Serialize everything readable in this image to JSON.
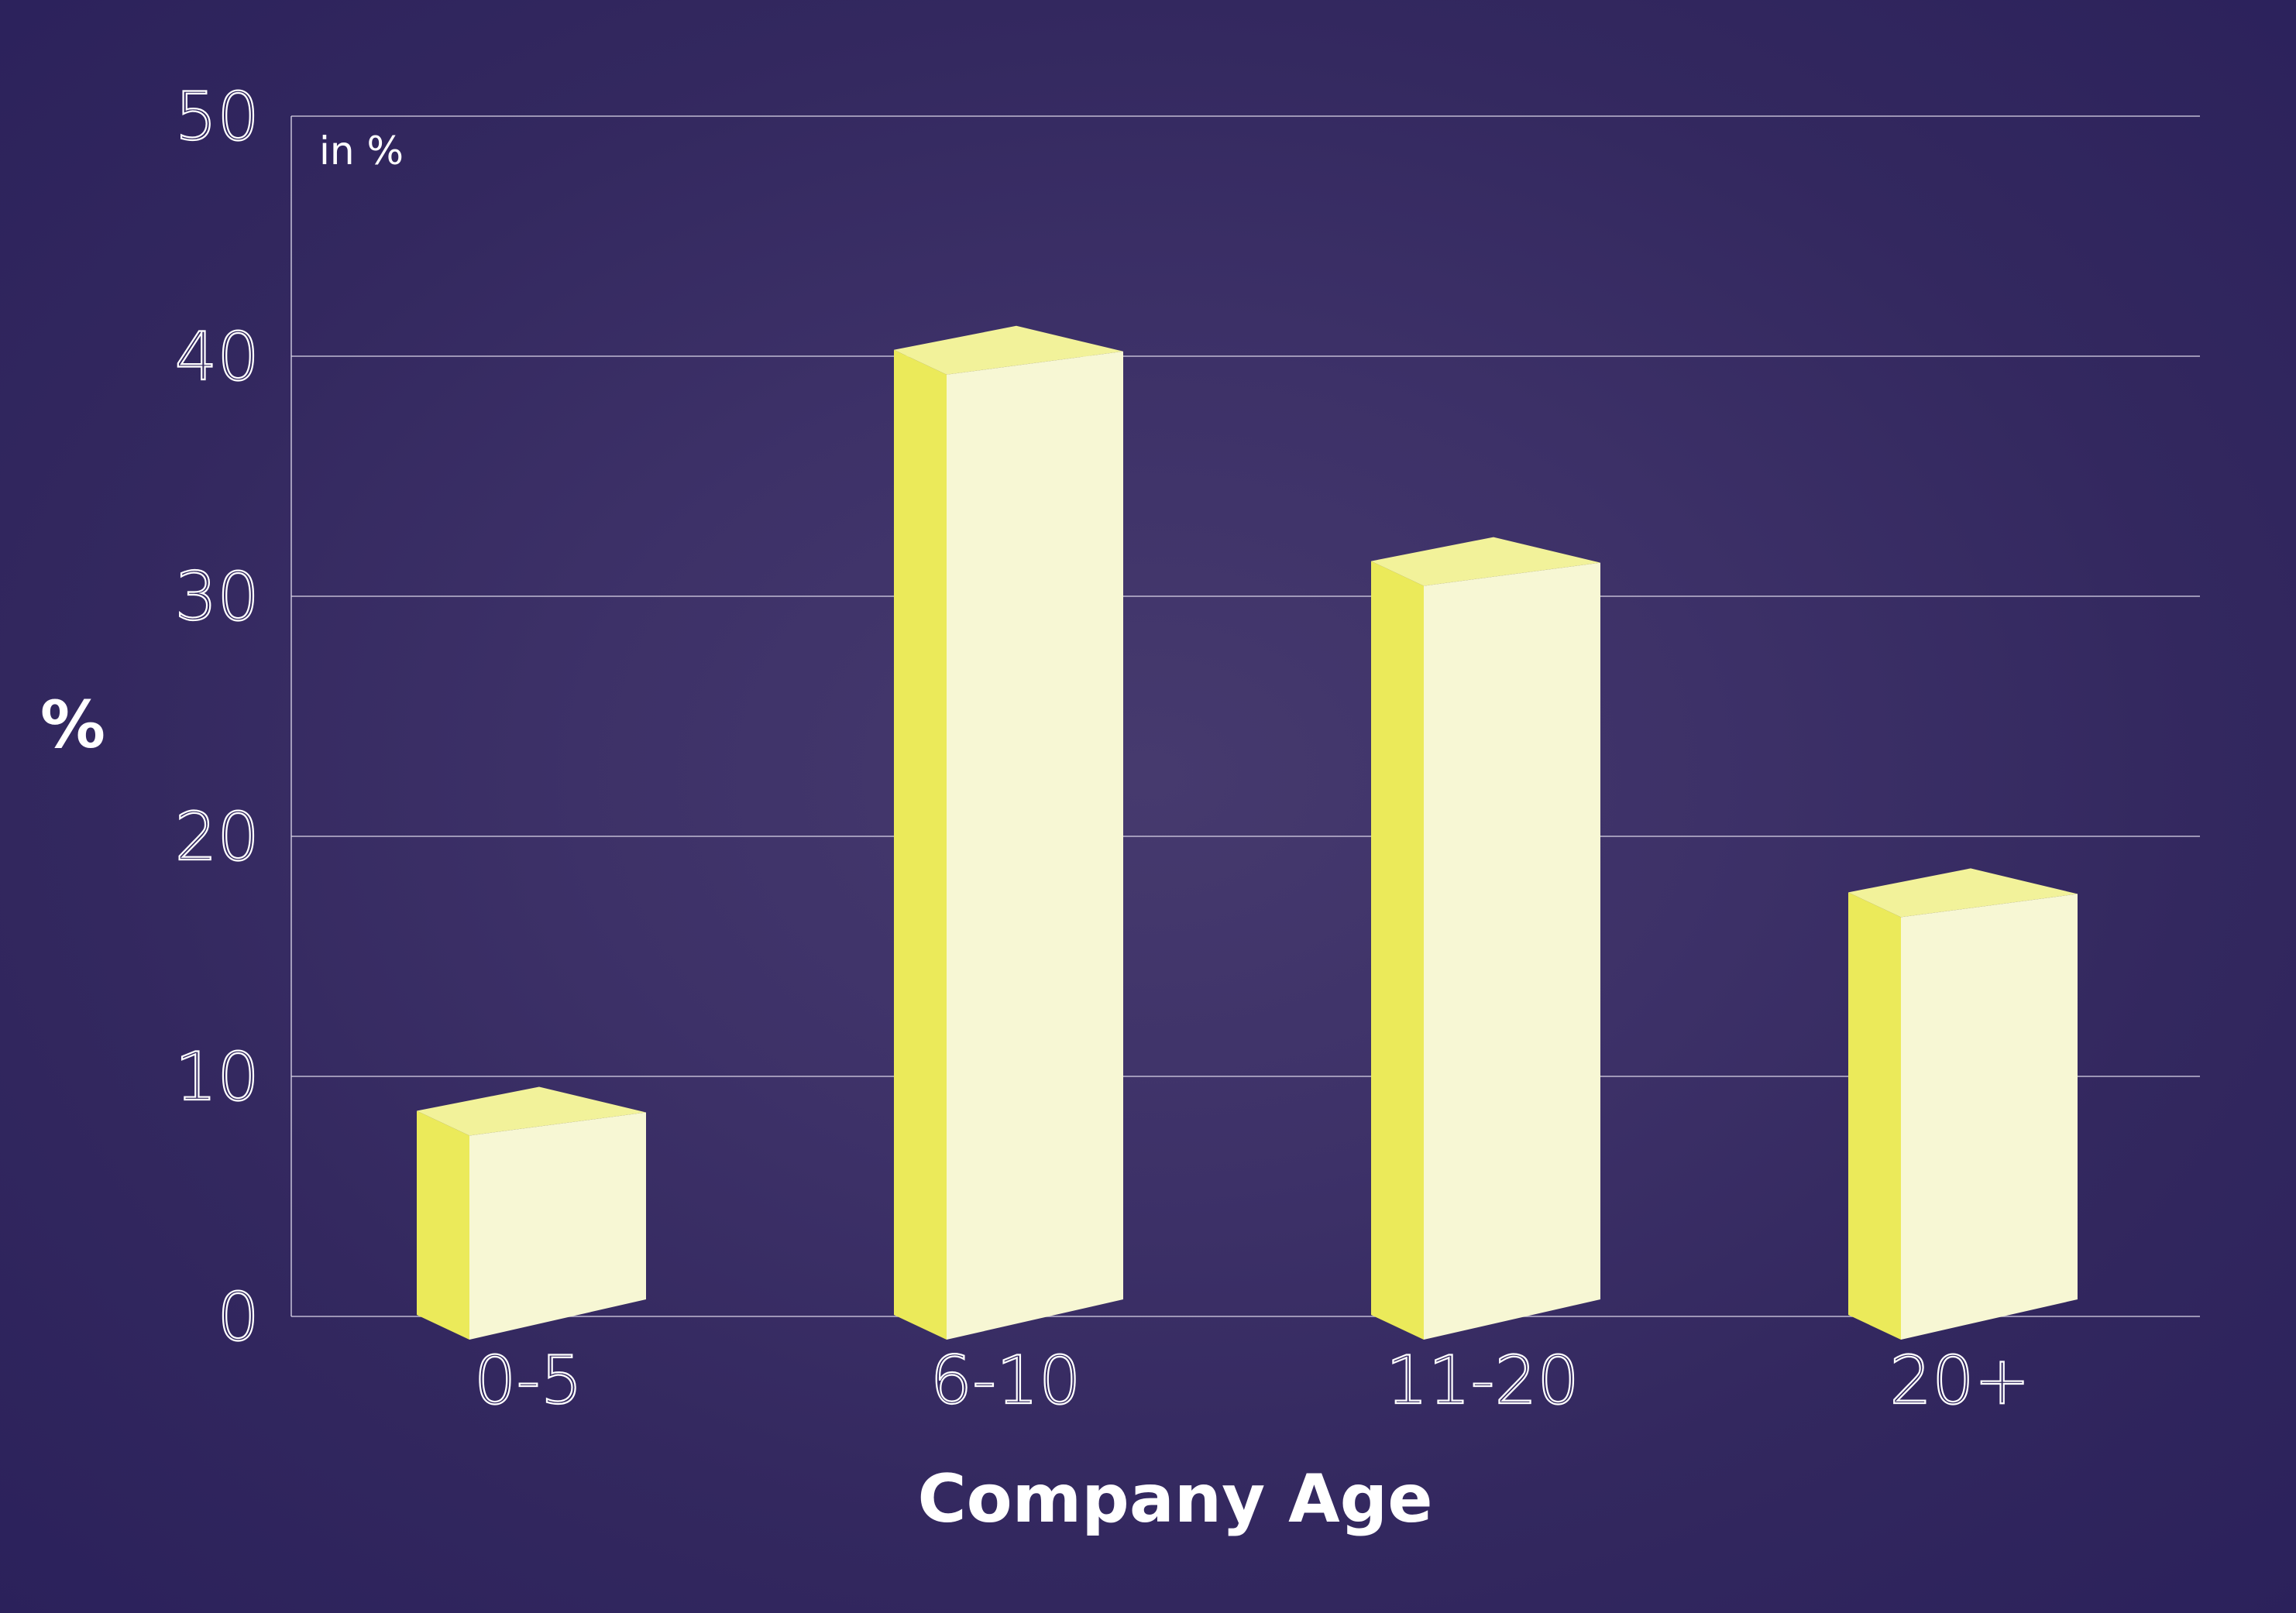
{
  "chart_data": {
    "type": "bar",
    "categories": [
      "0-5",
      "6-10",
      "11-20",
      "20+"
    ],
    "values": [
      8.5,
      40.2,
      31.4,
      17.6
    ],
    "xlabel": "Company Age",
    "ylabel": "%",
    "unit_note": "in %",
    "ylim": [
      0,
      50
    ],
    "yticks": [
      "0",
      "10",
      "20",
      "30",
      "40",
      "50"
    ],
    "grid": true,
    "style": "3d-bar",
    "colors": {
      "background": "#2b215e",
      "bar_front": "#f7f7d4",
      "bar_side": "#ebea5a",
      "bar_top": "#f2f29a",
      "text": "#ffffff",
      "grid": "#d8d4e6"
    }
  }
}
